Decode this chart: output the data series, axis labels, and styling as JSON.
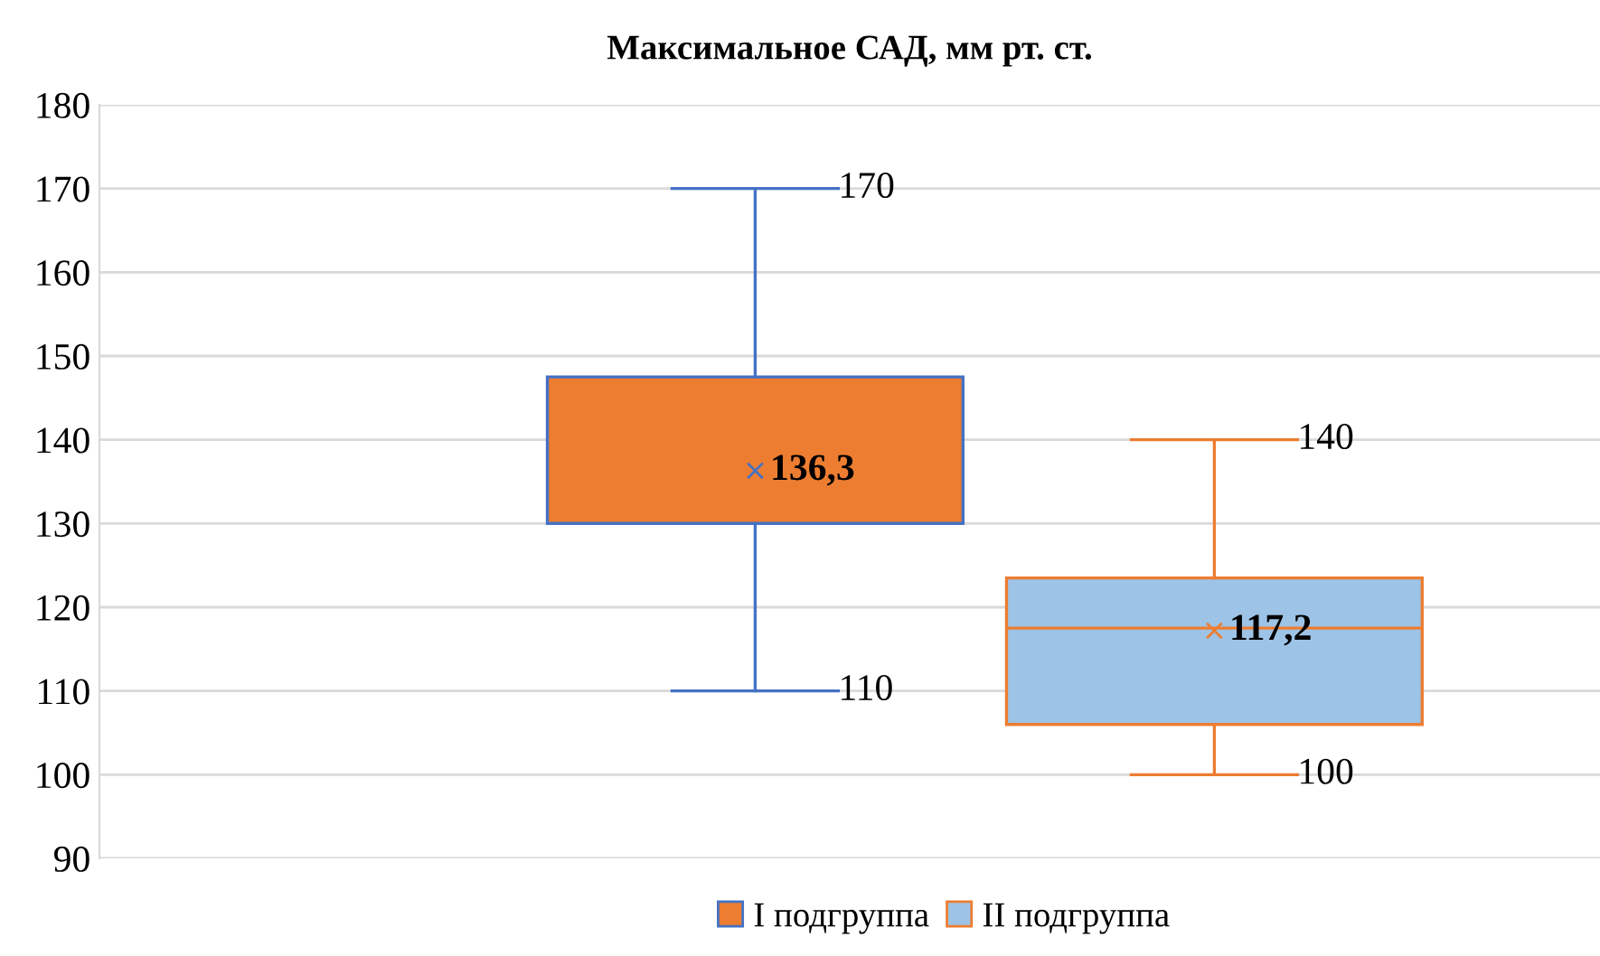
{
  "chart_data": {
    "type": "box",
    "title": "Максимальное САД, мм рт. ст.",
    "categories": [
      null
    ],
    "series": [
      {
        "name": "I подгруппа",
        "color": "#ed7d31",
        "boxes": [
          {
            "low": 110,
            "q1": 130,
            "median": 130,
            "q3": 147.5,
            "high": 170,
            "mean": 136.3
          }
        ]
      },
      {
        "name": "II подгруппа",
        "color": "#9dc3e6",
        "boxes": [
          {
            "low": 100,
            "q1": 106,
            "median": 117.5,
            "q3": 123.5,
            "high": 140,
            "mean": 117.2
          }
        ]
      }
    ],
    "annotations": [
      "170",
      "136,3",
      "110",
      "140",
      "117,2",
      "100"
    ],
    "ylim": [
      90,
      180
    ],
    "yticks": [
      90,
      100,
      110,
      120,
      130,
      140,
      150,
      160,
      170,
      180
    ],
    "grid": "y",
    "legend": "bottom",
    "tick_labels": "y",
    "marker": "cross"
  }
}
